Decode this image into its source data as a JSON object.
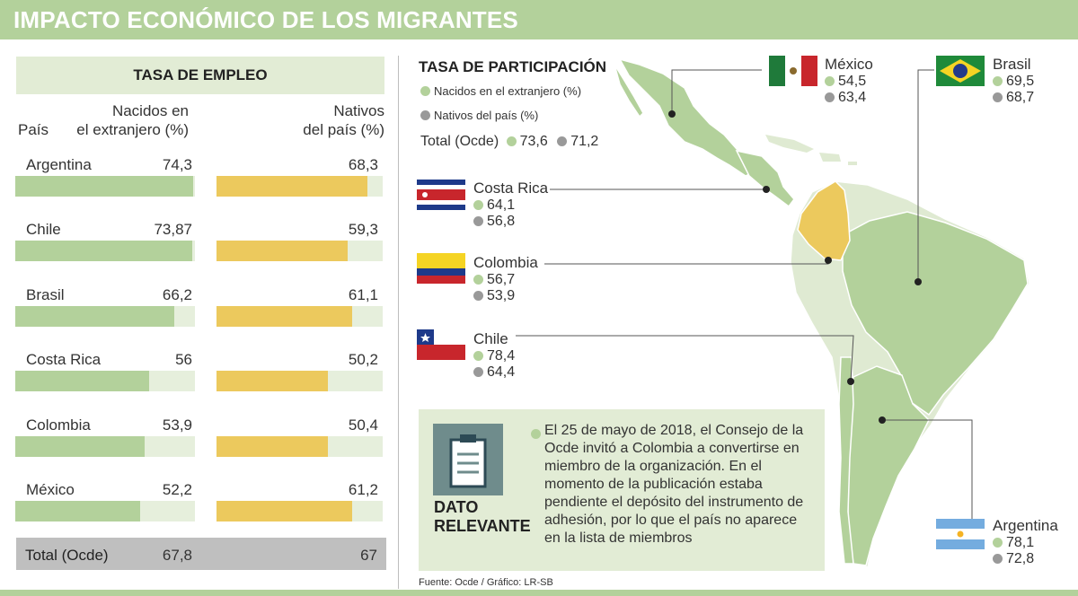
{
  "header": {
    "title": "IMPACTO ECONÓMICO DE LOS MIGRANTES"
  },
  "colors": {
    "foreign": "#b3d19b",
    "native": "#ecc95d",
    "track": "#e6efdc",
    "map_land": "#b3d19b",
    "map_light": "#dfead2",
    "colombia": "#ecc95d"
  },
  "employment": {
    "title": "TASA DE EMPLEO",
    "col_country": "País",
    "col_foreign": [
      "Nacidos en",
      "el extranjero (%)"
    ],
    "col_native": [
      "Nativos",
      "del país (%)"
    ],
    "rows": [
      {
        "country": "Argentina",
        "foreign": "74,3",
        "native": "68,3"
      },
      {
        "country": "Chile",
        "foreign": "73,87",
        "native": "59,3"
      },
      {
        "country": "Brasil",
        "foreign": "66,2",
        "native": "61,1"
      },
      {
        "country": "Costa Rica",
        "foreign": "56",
        "native": "50,2"
      },
      {
        "country": "Colombia",
        "foreign": "53,9",
        "native": "50,4"
      },
      {
        "country": "México",
        "foreign": "52,2",
        "native": "61,2"
      }
    ],
    "total": {
      "label": "Total (Ocde)",
      "foreign": "67,8",
      "native": "67"
    }
  },
  "participation": {
    "title": "TASA DE PARTICIPACIÓN",
    "legend_foreign": "Nacidos en el extranjero (%)",
    "legend_native": "Nativos del país (%)",
    "total_label": "Total (Ocde)",
    "total_foreign": "73,6",
    "total_native": "71,2",
    "countries": [
      {
        "key": "mexico",
        "name": "México",
        "foreign": "54,5",
        "native": "63,4"
      },
      {
        "key": "brasil",
        "name": "Brasil",
        "foreign": "69,5",
        "native": "68,7"
      },
      {
        "key": "costarica",
        "name": "Costa Rica",
        "foreign": "64,1",
        "native": "56,8"
      },
      {
        "key": "colombia",
        "name": "Colombia",
        "foreign": "56,7",
        "native": "53,9"
      },
      {
        "key": "chile",
        "name": "Chile",
        "foreign": "78,4",
        "native": "64,4"
      },
      {
        "key": "argentina",
        "name": "Argentina",
        "foreign": "78,1",
        "native": "72,8"
      }
    ]
  },
  "chart_data": [
    {
      "type": "bar",
      "title": "TASA DE EMPLEO",
      "categories": [
        "Argentina",
        "Chile",
        "Brasil",
        "Costa Rica",
        "Colombia",
        "México",
        "Total (Ocde)"
      ],
      "series": [
        {
          "name": "Nacidos en el extranjero (%)",
          "values": [
            74.3,
            73.87,
            66.2,
            56,
            53.9,
            52.2,
            67.8
          ]
        },
        {
          "name": "Nativos del país (%)",
          "values": [
            68.3,
            59.3,
            61.1,
            50.2,
            50.4,
            61.2,
            67
          ]
        }
      ],
      "ylim": [
        0,
        75
      ]
    },
    {
      "type": "table",
      "title": "TASA DE PARTICIPACIÓN",
      "categories": [
        "México",
        "Brasil",
        "Costa Rica",
        "Colombia",
        "Chile",
        "Argentina",
        "Total (Ocde)"
      ],
      "series": [
        {
          "name": "Nacidos en el extranjero (%)",
          "values": [
            54.5,
            69.5,
            64.1,
            56.7,
            78.4,
            78.1,
            73.6
          ]
        },
        {
          "name": "Nativos del país (%)",
          "values": [
            63.4,
            68.7,
            56.8,
            53.9,
            64.4,
            72.8,
            71.2
          ]
        }
      ]
    }
  ],
  "dato": {
    "title_line1": "DATO",
    "title_line2": "RELEVANTE",
    "text": "El 25 de mayo de 2018, el Consejo de la Ocde invitó a Colombia a convertirse en miembro de la organización. En el momento de la publicación estaba pendiente el depósito del instrumento de adhesión, por lo que el país no aparece en la lista de miembros"
  },
  "source": "Fuente: Ocde / Gráfico: LR-SB"
}
